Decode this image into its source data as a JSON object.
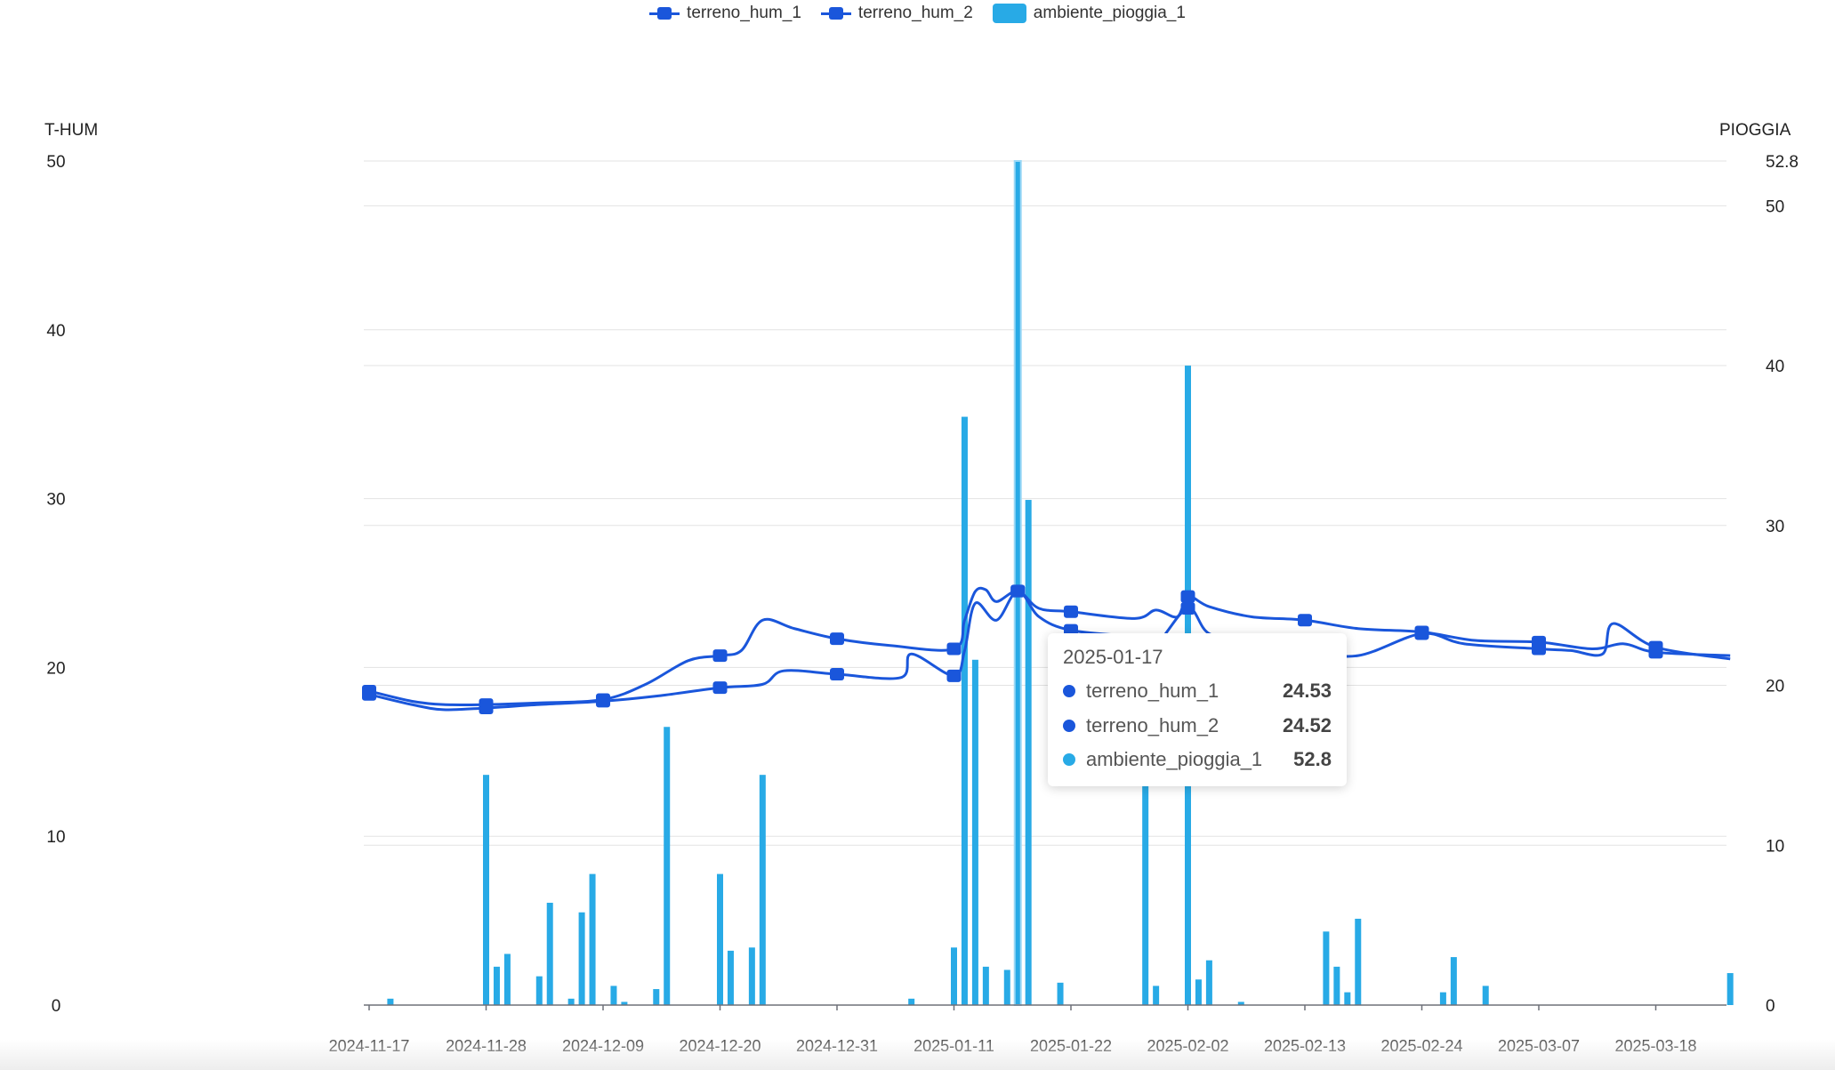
{
  "legend": {
    "items": [
      {
        "name": "terreno_hum_1",
        "type": "line",
        "color": "#1a56db"
      },
      {
        "name": "terreno_hum_2",
        "type": "line",
        "color": "#1a56db"
      },
      {
        "name": "ambiente_pioggia_1",
        "type": "bar",
        "color": "#28aae6"
      }
    ]
  },
  "axes": {
    "left_name": "T-HUM",
    "right_name": "PIOGGIA"
  },
  "tooltip": {
    "date": "2025-01-17",
    "rows": [
      {
        "name": "terreno_hum_1",
        "value": "24.53",
        "color": "#1a56db"
      },
      {
        "name": "terreno_hum_2",
        "value": "24.52",
        "color": "#1a56db"
      },
      {
        "name": "ambiente_pioggia_1",
        "value": "52.8",
        "color": "#28aae6"
      }
    ]
  },
  "chart_data": {
    "type": "bar+line",
    "x_start": "2024-11-17",
    "x_end": "2025-03-25",
    "x_tick_labels": [
      "2024-11-17",
      "2024-11-28",
      "2024-12-09",
      "2024-12-20",
      "2024-12-31",
      "2025-01-11",
      "2025-01-22",
      "2025-02-02",
      "2025-02-13",
      "2025-02-24",
      "2025-03-07",
      "2025-03-18"
    ],
    "left_axis": {
      "label": "T-HUM",
      "min": 0,
      "max": 50,
      "ticks": [
        0,
        10,
        20,
        30,
        40,
        50
      ]
    },
    "right_axis": {
      "label": "PIOGGIA",
      "min": 0,
      "max": 52.8,
      "ticks": [
        0,
        10,
        20,
        30,
        40,
        50,
        52.8
      ]
    },
    "highlight_date": "2025-01-17",
    "series": [
      {
        "name": "terreno_hum_1",
        "type": "line",
        "axis": "left",
        "color": "#1a56db",
        "points": [
          [
            "2024-11-17",
            18.4
          ],
          [
            "2024-11-21",
            17.8
          ],
          [
            "2024-11-24",
            17.5
          ],
          [
            "2024-11-28",
            17.6
          ],
          [
            "2024-12-03",
            17.8
          ],
          [
            "2024-12-09",
            18.0
          ],
          [
            "2024-12-14",
            18.3
          ],
          [
            "2024-12-20",
            18.8
          ],
          [
            "2024-12-24",
            19.0
          ],
          [
            "2024-12-26",
            19.8
          ],
          [
            "2024-12-31",
            19.6
          ],
          [
            "2025-01-06",
            19.4
          ],
          [
            "2025-01-07",
            20.8
          ],
          [
            "2025-01-11",
            19.5
          ],
          [
            "2025-01-12",
            21.0
          ],
          [
            "2025-01-13",
            23.8
          ],
          [
            "2025-01-15",
            22.8
          ],
          [
            "2025-01-17",
            24.53
          ],
          [
            "2025-01-19",
            23.0
          ],
          [
            "2025-01-22",
            22.2
          ],
          [
            "2025-01-28",
            21.8
          ],
          [
            "2025-01-30",
            21.4
          ],
          [
            "2025-02-02",
            23.5
          ],
          [
            "2025-02-04",
            22.0
          ],
          [
            "2025-02-08",
            21.4
          ],
          [
            "2025-02-13",
            21.0
          ],
          [
            "2025-02-18",
            20.7
          ],
          [
            "2025-02-24",
            22.0
          ],
          [
            "2025-02-28",
            21.4
          ],
          [
            "2025-03-07",
            21.1
          ],
          [
            "2025-03-10",
            21.0
          ],
          [
            "2025-03-13",
            20.8
          ],
          [
            "2025-03-14",
            22.6
          ],
          [
            "2025-03-18",
            21.2
          ],
          [
            "2025-03-25",
            20.5
          ]
        ]
      },
      {
        "name": "terreno_hum_2",
        "type": "line",
        "axis": "left",
        "color": "#1a56db",
        "points": [
          [
            "2024-11-17",
            18.6
          ],
          [
            "2024-11-21",
            18.0
          ],
          [
            "2024-11-24",
            17.8
          ],
          [
            "2024-11-28",
            17.8
          ],
          [
            "2024-12-03",
            17.9
          ],
          [
            "2024-12-09",
            18.1
          ],
          [
            "2024-12-13",
            19.0
          ],
          [
            "2024-12-17",
            20.4
          ],
          [
            "2024-12-20",
            20.7
          ],
          [
            "2024-12-22",
            21.0
          ],
          [
            "2024-12-24",
            22.8
          ],
          [
            "2024-12-27",
            22.3
          ],
          [
            "2024-12-31",
            21.7
          ],
          [
            "2025-01-05",
            21.3
          ],
          [
            "2025-01-11",
            21.1
          ],
          [
            "2025-01-12",
            22.8
          ],
          [
            "2025-01-13",
            24.5
          ],
          [
            "2025-01-14",
            24.6
          ],
          [
            "2025-01-15",
            23.9
          ],
          [
            "2025-01-17",
            24.52
          ],
          [
            "2025-01-19",
            23.5
          ],
          [
            "2025-01-22",
            23.3
          ],
          [
            "2025-01-28",
            22.9
          ],
          [
            "2025-01-30",
            23.4
          ],
          [
            "2025-02-01",
            23.0
          ],
          [
            "2025-02-02",
            24.2
          ],
          [
            "2025-02-04",
            23.6
          ],
          [
            "2025-02-08",
            23.0
          ],
          [
            "2025-02-13",
            22.8
          ],
          [
            "2025-02-18",
            22.3
          ],
          [
            "2025-02-24",
            22.1
          ],
          [
            "2025-03-01",
            21.6
          ],
          [
            "2025-03-07",
            21.5
          ],
          [
            "2025-03-12",
            21.1
          ],
          [
            "2025-03-15",
            21.4
          ],
          [
            "2025-03-18",
            20.9
          ],
          [
            "2025-03-25",
            20.7
          ]
        ]
      },
      {
        "name": "ambiente_pioggia_1",
        "type": "bar",
        "axis": "right",
        "color": "#28aae6",
        "points": [
          [
            "2024-11-19",
            0.4
          ],
          [
            "2024-11-28",
            14.4
          ],
          [
            "2024-11-29",
            2.4
          ],
          [
            "2024-11-30",
            3.2
          ],
          [
            "2024-12-03",
            1.8
          ],
          [
            "2024-12-04",
            6.4
          ],
          [
            "2024-12-06",
            0.4
          ],
          [
            "2024-12-07",
            5.8
          ],
          [
            "2024-12-08",
            8.2
          ],
          [
            "2024-12-10",
            1.2
          ],
          [
            "2024-12-11",
            0.2
          ],
          [
            "2024-12-14",
            1.0
          ],
          [
            "2024-12-15",
            17.4
          ],
          [
            "2024-12-20",
            8.2
          ],
          [
            "2024-12-21",
            3.4
          ],
          [
            "2024-12-23",
            3.6
          ],
          [
            "2024-12-24",
            14.4
          ],
          [
            "2025-01-07",
            0.4
          ],
          [
            "2025-01-11",
            3.6
          ],
          [
            "2025-01-12",
            36.8
          ],
          [
            "2025-01-13",
            21.6
          ],
          [
            "2025-01-14",
            2.4
          ],
          [
            "2025-01-16",
            2.2
          ],
          [
            "2025-01-17",
            52.8
          ],
          [
            "2025-01-18",
            31.6
          ],
          [
            "2025-01-21",
            1.4
          ],
          [
            "2025-01-29",
            14.6
          ],
          [
            "2025-01-30",
            1.2
          ],
          [
            "2025-02-02",
            40.0
          ],
          [
            "2025-02-03",
            1.6
          ],
          [
            "2025-02-04",
            2.8
          ],
          [
            "2025-02-07",
            0.2
          ],
          [
            "2025-02-15",
            4.6
          ],
          [
            "2025-02-16",
            2.4
          ],
          [
            "2025-02-17",
            0.8
          ],
          [
            "2025-02-18",
            5.4
          ],
          [
            "2025-02-26",
            0.8
          ],
          [
            "2025-02-27",
            3.0
          ],
          [
            "2025-03-02",
            1.2
          ],
          [
            "2025-03-25",
            2.0
          ]
        ]
      }
    ]
  }
}
